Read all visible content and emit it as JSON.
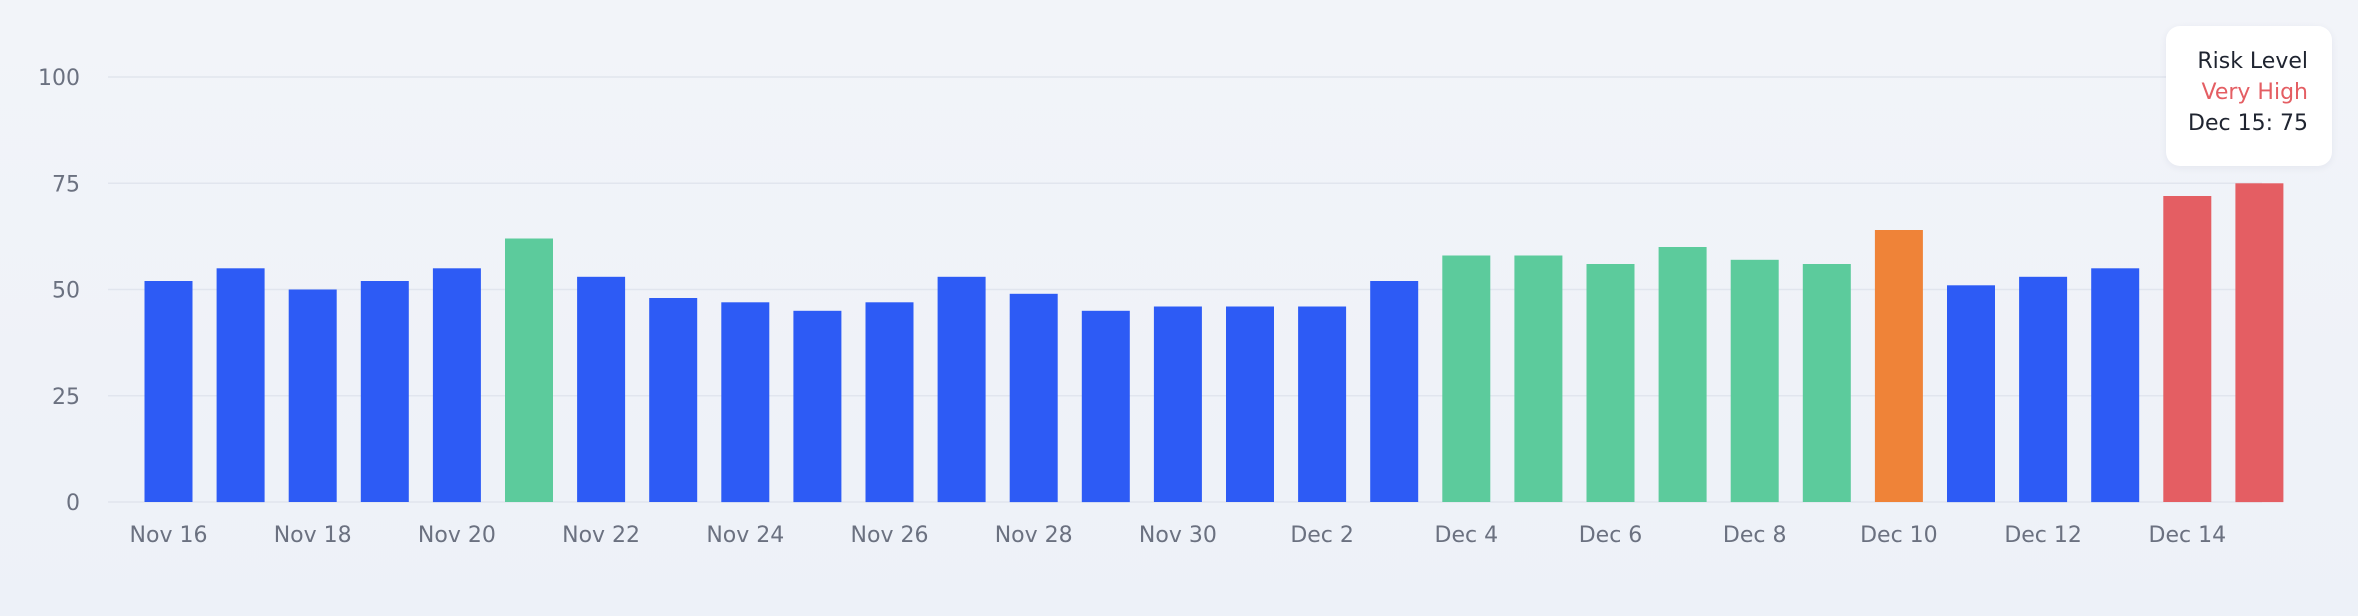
{
  "chart_data": {
    "type": "bar",
    "title": "",
    "xlabel": "",
    "ylabel": "",
    "ylim": [
      0,
      100
    ],
    "y_ticks": [
      "0",
      "25",
      "50",
      "75",
      "100"
    ],
    "grid": true,
    "x_tick_labels": [
      "Nov 16",
      "Nov 18",
      "Nov 20",
      "Nov 22",
      "Nov 24",
      "Nov 26",
      "Nov 28",
      "Nov 30",
      "Dec 2",
      "Dec 4",
      "Dec 6",
      "Dec 8",
      "Dec 10",
      "Dec 12",
      "Dec 14"
    ],
    "values": [
      52,
      55,
      50,
      52,
      55,
      62,
      53,
      48,
      47,
      45,
      47,
      53,
      49,
      45,
      46,
      46,
      46,
      52,
      58,
      58,
      56,
      60,
      57,
      56,
      64,
      51,
      53,
      55,
      72,
      75
    ],
    "risk_levels": [
      "low",
      "low",
      "low",
      "low",
      "low",
      "medium",
      "low",
      "low",
      "low",
      "low",
      "low",
      "low",
      "low",
      "low",
      "low",
      "low",
      "low",
      "low",
      "medium",
      "medium",
      "medium",
      "medium",
      "medium",
      "medium",
      "high",
      "low",
      "low",
      "low",
      "very_high",
      "very_high"
    ],
    "colors": {
      "low": "#2d5bf5",
      "medium": "#5ccb9c",
      "high": "#ef8338",
      "very_high": "#e45e63",
      "grid": "#e1e5ee",
      "tick_text": "#6b7180"
    }
  },
  "tooltip": {
    "title": "Risk Level",
    "level": "Very High",
    "level_color": "#e45e63",
    "value_line": "Dec 15: 75"
  }
}
